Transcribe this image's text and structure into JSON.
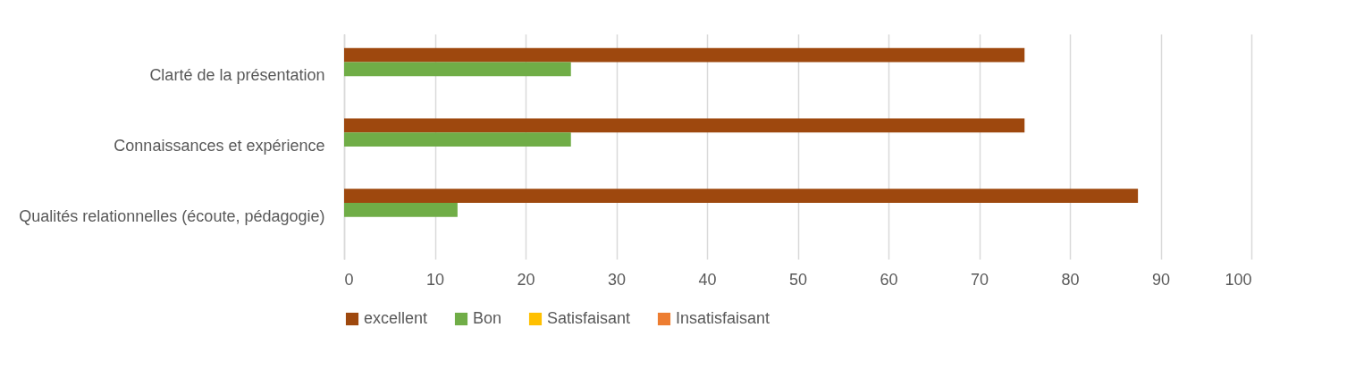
{
  "chart_data": {
    "type": "bar",
    "orientation": "horizontal",
    "categories": [
      "Clarté de la présentation",
      "Connaissances et expérience",
      "Qualités relationnelles (écoute, pédagogie)"
    ],
    "series": [
      {
        "name": "excellent",
        "color": "#9e480e",
        "values": [
          75,
          75,
          87.5
        ]
      },
      {
        "name": "Bon",
        "color": "#70ad47",
        "values": [
          25,
          25,
          12.5
        ]
      },
      {
        "name": "Satisfaisant",
        "color": "#ffc000",
        "values": [
          0,
          0,
          0
        ]
      },
      {
        "name": "Insatisfaisant",
        "color": "#ed7d31",
        "values": [
          0,
          0,
          0
        ]
      }
    ],
    "xlim": [
      0,
      100
    ],
    "xticks": [
      0,
      10,
      20,
      30,
      40,
      50,
      60,
      70,
      80,
      90,
      100
    ],
    "grid": "x",
    "legend": "bottom"
  }
}
